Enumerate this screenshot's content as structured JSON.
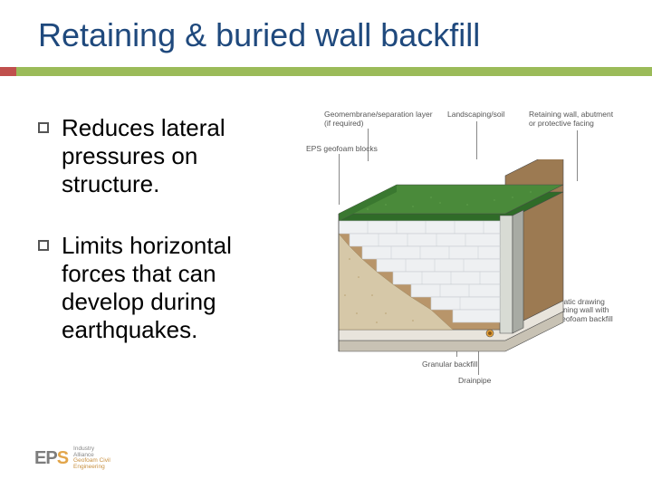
{
  "title": "Retaining & buried wall backfill",
  "bullets": [
    "Reduces lateral pressures on structure.",
    "Limits horizontal forces that can develop during earthquakes."
  ],
  "diagram": {
    "labels": {
      "top_left": "Geomembrane/separation layer\n(if required)",
      "top_mid": "Landscaping/soil",
      "top_right": "Retaining wall, abutment\nor protective facing",
      "mid_left": "EPS geofoam blocks",
      "right_lower": "Schematic drawing\nof retaining wall with\nEPS geofoam backfill",
      "bottom_mid": "Granular backfill",
      "drainpipe": "Drainpipe"
    },
    "colors": {
      "grass_top": "#4a8a3a",
      "grass_dark": "#2f6b28",
      "soil_front": "#b8956a",
      "soil_side": "#9c7a52",
      "geofoam": "#eef0f2",
      "geofoam_line": "#c8ccd0",
      "wall": "#d8dbd4",
      "wall_shade": "#a8aba4",
      "granular": "#d6c8a8",
      "base": "#e8e4dc",
      "base_shade": "#c8c2b4",
      "drainpipe": "#e8a23a",
      "outline": "#4a4a4a"
    }
  },
  "logo": {
    "brand": "EPS",
    "sub1": "Industry",
    "sub2": "Alliance",
    "sub3": "Geofoam Civil",
    "sub4": "Engineering"
  },
  "colors": {
    "title": "#1f497d",
    "accent_bar": "#9bbb59",
    "accent_tab": "#c0504d"
  }
}
